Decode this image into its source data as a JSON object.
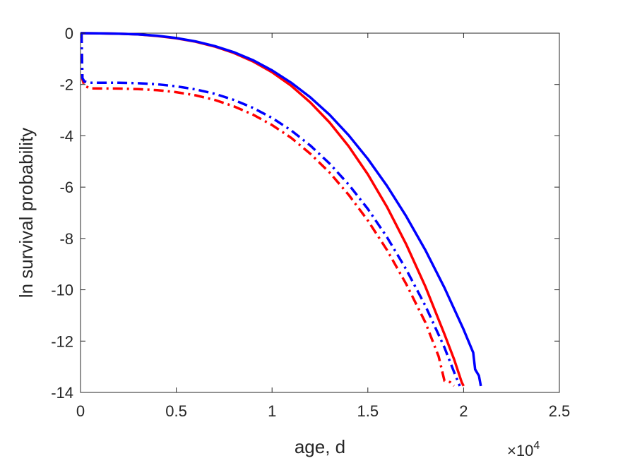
{
  "chart_data": {
    "type": "line",
    "xlabel": "age, d",
    "ylabel": "ln survival probability",
    "x_multiplier": "×10",
    "x_multiplier_exp": "4",
    "xlim": [
      0,
      2.5
    ],
    "ylim": [
      -14,
      0
    ],
    "xticks": [
      0,
      0.5,
      1,
      1.5,
      2,
      2.5
    ],
    "xtick_labels": [
      "0",
      "0.5",
      "1",
      "1.5",
      "2",
      "2.5"
    ],
    "yticks": [
      0,
      -2,
      -4,
      -6,
      -8,
      -10,
      -12,
      -14
    ],
    "ytick_labels": [
      "0",
      "-2",
      "-4",
      "-6",
      "-8",
      "-10",
      "-12",
      "-14"
    ],
    "grid": false,
    "series": [
      {
        "color": "#ff0000",
        "style": "solid",
        "points": [
          [
            0,
            0
          ],
          [
            0.1,
            -0.005
          ],
          [
            0.2,
            -0.02
          ],
          [
            0.3,
            -0.05
          ],
          [
            0.4,
            -0.11
          ],
          [
            0.5,
            -0.2
          ],
          [
            0.6,
            -0.33
          ],
          [
            0.7,
            -0.52
          ],
          [
            0.8,
            -0.77
          ],
          [
            0.9,
            -1.1
          ],
          [
            1.0,
            -1.52
          ],
          [
            1.1,
            -2.05
          ],
          [
            1.2,
            -2.7
          ],
          [
            1.3,
            -3.48
          ],
          [
            1.4,
            -4.41
          ],
          [
            1.5,
            -5.5
          ],
          [
            1.6,
            -6.77
          ],
          [
            1.7,
            -8.22
          ],
          [
            1.8,
            -9.87
          ],
          [
            1.9,
            -11.73
          ],
          [
            1.95,
            -12.7
          ],
          [
            1.99,
            -13.6
          ],
          [
            2.0,
            -13.75
          ]
        ]
      },
      {
        "color": "#0000ff",
        "style": "solid",
        "points": [
          [
            0,
            0
          ],
          [
            0.1,
            -0.005
          ],
          [
            0.2,
            -0.02
          ],
          [
            0.3,
            -0.05
          ],
          [
            0.4,
            -0.1
          ],
          [
            0.5,
            -0.19
          ],
          [
            0.6,
            -0.32
          ],
          [
            0.7,
            -0.5
          ],
          [
            0.8,
            -0.74
          ],
          [
            0.9,
            -1.05
          ],
          [
            1.0,
            -1.45
          ],
          [
            1.1,
            -1.93
          ],
          [
            1.2,
            -2.5
          ],
          [
            1.3,
            -3.18
          ],
          [
            1.4,
            -3.98
          ],
          [
            1.5,
            -4.9
          ],
          [
            1.6,
            -5.95
          ],
          [
            1.7,
            -7.13
          ],
          [
            1.8,
            -8.45
          ],
          [
            1.9,
            -9.92
          ],
          [
            2.0,
            -11.55
          ],
          [
            2.05,
            -12.45
          ],
          [
            2.06,
            -13.1
          ],
          [
            2.08,
            -13.35
          ],
          [
            2.09,
            -13.75
          ]
        ]
      },
      {
        "color": "#ff0000",
        "style": "dashdot",
        "points": [
          [
            0.005,
            0
          ],
          [
            0.01,
            -1.8
          ],
          [
            0.02,
            -2.05
          ],
          [
            0.05,
            -2.15
          ],
          [
            0.2,
            -2.16
          ],
          [
            0.3,
            -2.18
          ],
          [
            0.4,
            -2.22
          ],
          [
            0.5,
            -2.3
          ],
          [
            0.6,
            -2.42
          ],
          [
            0.7,
            -2.6
          ],
          [
            0.8,
            -2.85
          ],
          [
            0.9,
            -3.17
          ],
          [
            1.0,
            -3.58
          ],
          [
            1.1,
            -4.08
          ],
          [
            1.2,
            -4.7
          ],
          [
            1.3,
            -5.43
          ],
          [
            1.4,
            -6.3
          ],
          [
            1.5,
            -7.3
          ],
          [
            1.6,
            -8.45
          ],
          [
            1.7,
            -9.77
          ],
          [
            1.8,
            -11.27
          ],
          [
            1.87,
            -12.6
          ],
          [
            1.9,
            -13.55
          ],
          [
            1.93,
            -13.6
          ],
          [
            1.95,
            -13.75
          ]
        ]
      },
      {
        "color": "#0000ff",
        "style": "dashdot",
        "points": [
          [
            0.005,
            0
          ],
          [
            0.01,
            -1.75
          ],
          [
            0.02,
            -1.88
          ],
          [
            0.05,
            -1.93
          ],
          [
            0.2,
            -1.93
          ],
          [
            0.3,
            -1.95
          ],
          [
            0.4,
            -1.99
          ],
          [
            0.5,
            -2.07
          ],
          [
            0.6,
            -2.19
          ],
          [
            0.7,
            -2.36
          ],
          [
            0.8,
            -2.6
          ],
          [
            0.9,
            -2.91
          ],
          [
            1.0,
            -3.3
          ],
          [
            1.1,
            -3.79
          ],
          [
            1.2,
            -4.38
          ],
          [
            1.3,
            -5.08
          ],
          [
            1.4,
            -5.9
          ],
          [
            1.5,
            -6.85
          ],
          [
            1.6,
            -7.95
          ],
          [
            1.7,
            -9.2
          ],
          [
            1.8,
            -10.62
          ],
          [
            1.9,
            -12.25
          ],
          [
            1.95,
            -13.2
          ],
          [
            1.98,
            -13.75
          ]
        ]
      }
    ]
  }
}
